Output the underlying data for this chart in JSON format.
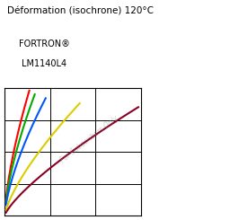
{
  "title_line1": "Déformation (isochrone) 120°C",
  "subtitle_line1": "FORTRON®",
  "subtitle_line2": "LM1140L4",
  "watermark": "For Subscribers Only",
  "curves": [
    {
      "color": "#ff0000",
      "label": "red"
    },
    {
      "color": "#00aa00",
      "label": "green"
    },
    {
      "color": "#0055ff",
      "label": "blue"
    },
    {
      "color": "#ddcc00",
      "label": "yellow"
    },
    {
      "color": "#880022",
      "label": "darkred"
    }
  ],
  "bg_color": "#ffffff",
  "grid_color": "#000000"
}
